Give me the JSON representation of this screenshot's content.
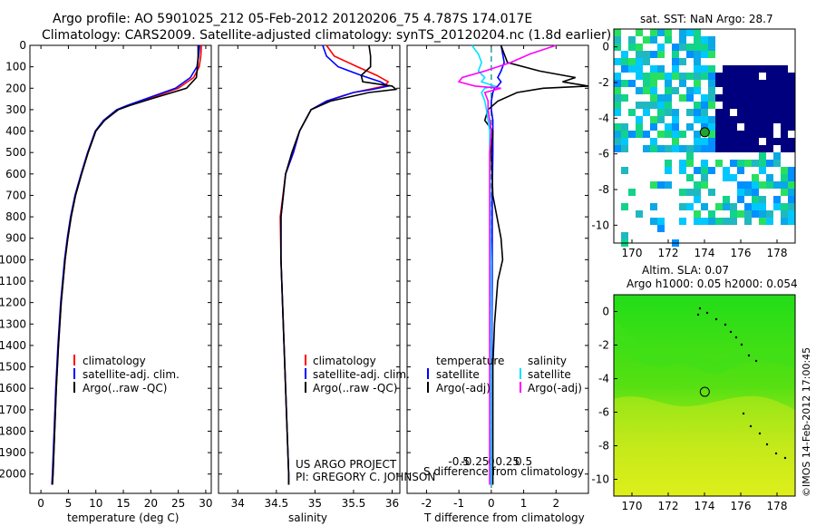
{
  "header": {
    "line1": "Argo profile: AO 5901025_212 05-Feb-2012 20120206_75 4.787S 174.017E",
    "line2": "Climatology: CARS2009. Satellite-adjusted climatology: synTS_20120204.nc (1.8d earlier)"
  },
  "side_label": "©IMOS 14-Feb-2012 17:00:45",
  "colors": {
    "climatology": "#ff0000",
    "satellite": "#0000ff",
    "argo": "#000000",
    "sal_satellite": "#00e0ff",
    "sal_argo": "#ff00ff",
    "dashed": "#2a9d9d"
  },
  "chart_data": [
    {
      "id": "temperature",
      "type": "line",
      "xlabel": "temperature (deg C)",
      "ylabel": "depth",
      "xlim": [
        -2,
        31
      ],
      "ylim": [
        2090,
        0
      ],
      "xticks": [
        0,
        5,
        10,
        15,
        20,
        25,
        30
      ],
      "yticks": [
        0,
        100,
        200,
        300,
        400,
        500,
        600,
        700,
        800,
        900,
        1000,
        1100,
        1200,
        1300,
        1400,
        1500,
        1600,
        1700,
        1800,
        1900,
        2000
      ],
      "legend": [
        "climatology",
        "satellite-adj. clim.",
        "Argo(..raw -QC)"
      ],
      "depth": [
        0,
        50,
        100,
        150,
        200,
        250,
        280,
        300,
        350,
        400,
        500,
        600,
        700,
        800,
        900,
        1000,
        1200,
        1400,
        1600,
        1800,
        2000,
        2050
      ],
      "series": [
        {
          "name": "climatology",
          "color": "#ff0000",
          "values": [
            29.2,
            29.1,
            28.8,
            27.8,
            25.0,
            19.5,
            16.0,
            14.0,
            11.5,
            10.0,
            8.6,
            7.4,
            6.3,
            5.5,
            4.9,
            4.4,
            3.7,
            3.2,
            2.8,
            2.5,
            2.2,
            2.1
          ]
        },
        {
          "name": "satellite-adj. clim.",
          "color": "#0000ff",
          "values": [
            28.9,
            28.7,
            28.4,
            27.2,
            24.5,
            19.0,
            15.7,
            13.8,
            11.4,
            9.9,
            8.5,
            7.3,
            6.2,
            5.4,
            4.8,
            4.3,
            3.6,
            3.1,
            2.7,
            2.4,
            2.1,
            2.0
          ]
        },
        {
          "name": "Argo(..raw -QC)",
          "color": "#000000",
          "values": [
            28.6,
            28.6,
            28.5,
            28.3,
            26.5,
            20.0,
            16.2,
            14.1,
            11.6,
            10.0,
            8.6,
            7.4,
            6.3,
            5.5,
            4.9,
            4.4,
            3.7,
            3.2,
            2.8,
            2.5,
            2.2,
            2.1
          ]
        }
      ]
    },
    {
      "id": "salinity",
      "type": "line",
      "xlabel": "salinity",
      "xlim": [
        33.75,
        36.1
      ],
      "ylim": [
        2090,
        0
      ],
      "xticks": [
        34,
        34.5,
        35,
        35.5,
        36
      ],
      "legend": [
        "climatology",
        "satellite-adj. clim.",
        "Argo(..raw -QC)"
      ],
      "annotation": [
        "US ARGO PROJECT",
        "PI: GREGORY C. JOHNSON"
      ],
      "depth": [
        0,
        50,
        100,
        140,
        170,
        190,
        205,
        220,
        260,
        300,
        400,
        500,
        600,
        800,
        1000,
        1200,
        1400,
        1600,
        1800,
        2000,
        2050
      ],
      "series": [
        {
          "name": "climatology",
          "color": "#ff0000",
          "values": [
            35.15,
            35.25,
            35.55,
            35.8,
            35.95,
            35.9,
            35.7,
            35.5,
            35.15,
            34.95,
            34.8,
            34.72,
            34.62,
            34.55,
            34.56,
            34.58,
            34.6,
            34.62,
            34.64,
            34.66,
            34.66
          ]
        },
        {
          "name": "satellite-adj. clim.",
          "color": "#0000ff",
          "values": [
            35.1,
            35.15,
            35.3,
            35.6,
            35.85,
            35.95,
            35.75,
            35.5,
            35.15,
            34.95,
            34.8,
            34.72,
            34.62,
            34.56,
            34.56,
            34.58,
            34.6,
            34.62,
            34.64,
            34.66,
            34.66
          ]
        },
        {
          "name": "Argo(..raw -QC)",
          "color": "#000000",
          "values": [
            35.7,
            35.72,
            35.72,
            35.6,
            35.62,
            36.0,
            36.05,
            35.7,
            35.2,
            34.95,
            34.8,
            34.7,
            34.62,
            34.56,
            34.56,
            34.58,
            34.6,
            34.62,
            34.64,
            34.66,
            34.66
          ]
        }
      ]
    },
    {
      "id": "difference",
      "type": "line",
      "xlabel": "T difference from climatology",
      "top_xlabel": "S difference from climatology",
      "xlim": [
        -2.6,
        3.0
      ],
      "ylim": [
        2090,
        0
      ],
      "xticks": [
        -2,
        -1,
        0,
        1,
        2
      ],
      "top_ticks": [
        -0.5,
        -0.25,
        0,
        0.25,
        0.5
      ],
      "legend_titles": [
        "temperature",
        "salinity"
      ],
      "legend": [
        "satellite",
        "Argo(-adj)",
        "satellite",
        "Argo(-adj)"
      ],
      "depth": [
        0,
        40,
        80,
        120,
        150,
        170,
        190,
        200,
        220,
        260,
        300,
        350,
        400,
        500,
        700,
        900,
        1000,
        1100,
        1300,
        1500,
        1700,
        1900,
        2050
      ],
      "series": [
        {
          "name": "T satellite",
          "color": "#0000ff",
          "values": [
            0.3,
            0.35,
            0.4,
            0.3,
            0.2,
            0.3,
            0.2,
            0.1,
            0.05,
            0.0,
            0.0,
            0.05,
            0.05,
            0.05,
            0.03,
            0.03,
            0.03,
            0.03,
            0.02,
            0.02,
            0.02,
            0.0,
            0.0
          ]
        },
        {
          "name": "T Argo(-adj)",
          "color": "#000000",
          "values": [
            0.3,
            0.4,
            0.5,
            1.5,
            2.6,
            2.2,
            3.0,
            1.6,
            0.8,
            0.2,
            -0.1,
            -0.2,
            0.05,
            0.0,
            0.05,
            0.3,
            0.35,
            0.2,
            0.1,
            0.05,
            0.05,
            0.05,
            0.05
          ]
        },
        {
          "name": "S satellite",
          "color": "#00e0ff",
          "values": [
            -0.6,
            -0.4,
            -0.3,
            -0.4,
            -0.2,
            -0.3,
            0.1,
            -0.2,
            -0.3,
            -0.2,
            -0.15,
            -0.1,
            -0.05,
            -0.05,
            -0.03,
            -0.02,
            0.0,
            0.0,
            0.0,
            0.0,
            0.0,
            0.0,
            0.0
          ]
        },
        {
          "name": "S Argo(-adj)",
          "color": "#ff00ff",
          "values": [
            2.0,
            1.2,
            0.6,
            -0.2,
            -0.9,
            -1.0,
            -0.5,
            0.3,
            -0.2,
            -0.1,
            -0.1,
            -0.05,
            0.0,
            -0.05,
            -0.05,
            -0.05,
            -0.05,
            -0.05,
            -0.05,
            -0.05,
            -0.05,
            -0.05,
            -0.05
          ]
        }
      ]
    },
    {
      "id": "sst_map",
      "type": "heatmap",
      "title": "sat. SST: NaN Argo: 28.7",
      "xlim": [
        169,
        179
      ],
      "ylim": [
        -11,
        1
      ],
      "xticks": [
        170,
        172,
        174,
        176,
        178
      ],
      "yticks": [
        0,
        -2,
        -4,
        -6,
        -8,
        -10
      ],
      "marker": [
        174.017,
        -4.787
      ]
    },
    {
      "id": "sla_map",
      "type": "heatmap",
      "title_line1": "Altim. SLA: 0.07",
      "title_line2": "Argo h1000: 0.05 h2000: 0.054",
      "xlim": [
        169,
        179
      ],
      "ylim": [
        -11,
        1
      ],
      "xticks": [
        170,
        172,
        174,
        176,
        178
      ],
      "yticks": [
        0,
        -2,
        -4,
        -6,
        -8,
        -10
      ],
      "marker": [
        174.017,
        -4.787
      ]
    }
  ]
}
